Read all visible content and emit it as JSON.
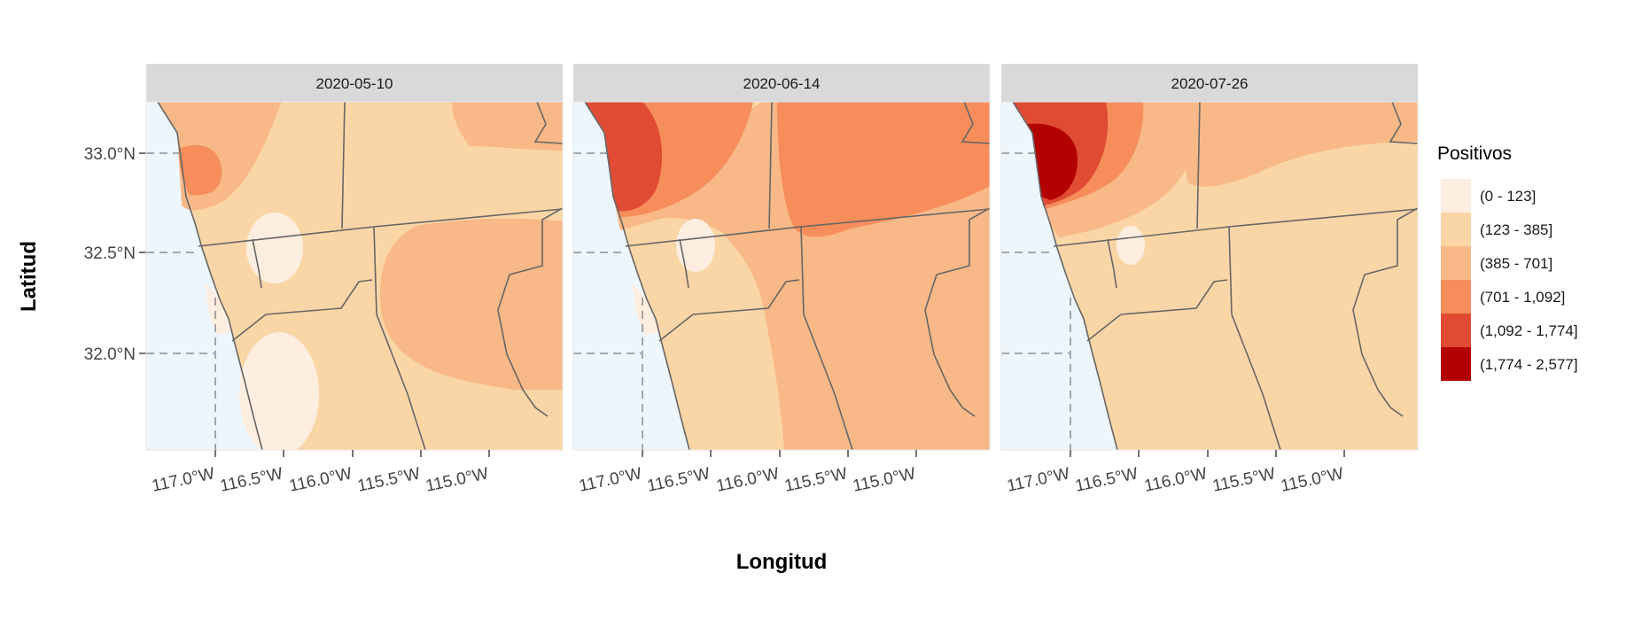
{
  "axis_labels": {
    "x": "Longitud",
    "y": "Latitud"
  },
  "lat_ticks": [
    "33.0°N",
    "32.5°N",
    "32.0°N"
  ],
  "lon_ticks": [
    "117.0°W",
    "116.5°W",
    "116.0°W",
    "115.5°W",
    "115.0°W"
  ],
  "panels": [
    {
      "date": "2020-05-10"
    },
    {
      "date": "2020-06-14"
    },
    {
      "date": "2020-07-26"
    }
  ],
  "legend": {
    "title": "Positivos",
    "items": [
      {
        "label": "(0 - 123]",
        "color": "#fdeee0"
      },
      {
        "label": "(123 - 385]",
        "color": "#fad6a6"
      },
      {
        "label": "(385 - 701]",
        "color": "#f8b887"
      },
      {
        "label": "(701 - 1,092]",
        "color": "#f68d5a"
      },
      {
        "label": "(1,092 - 1,774]",
        "color": "#e04b33"
      },
      {
        "label": "(1,774 - 2,577]",
        "color": "#b30000"
      }
    ]
  },
  "colors": {
    "ocean": "#eef6fd",
    "strip": "#d9d9d9",
    "border": "#666666"
  }
}
